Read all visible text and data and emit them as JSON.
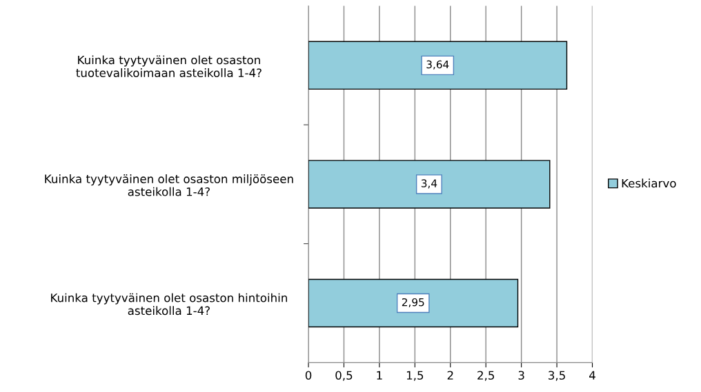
{
  "chart_data": {
    "type": "bar",
    "orientation": "horizontal",
    "categories": [
      "Kuinka tyytyväinen olet osaston\ntuotevalikoimaan asteikolla 1-4?",
      "Kuinka tyytyväinen olet osaston miljööseen\nasteikolla 1-4?",
      "Kuinka tyytyväinen olet osaston hintoihin\nasteikolla 1-4?"
    ],
    "series": [
      {
        "name": "Keskiarvo",
        "color": "#92cddc",
        "values": [
          3.64,
          3.4,
          2.95
        ],
        "value_labels": [
          "3,64",
          "3,4",
          "2,95"
        ]
      }
    ],
    "xlim": [
      0,
      4
    ],
    "xticks": [
      0,
      {
        "value": 0.5,
        "label": "0,5"
      },
      1,
      {
        "value": 1.5,
        "label": "1,5"
      },
      2,
      {
        "value": 2.5,
        "label": "2,5"
      },
      3,
      {
        "value": 3.5,
        "label": "3,5"
      },
      4
    ],
    "grid": "x",
    "legend": "right"
  }
}
